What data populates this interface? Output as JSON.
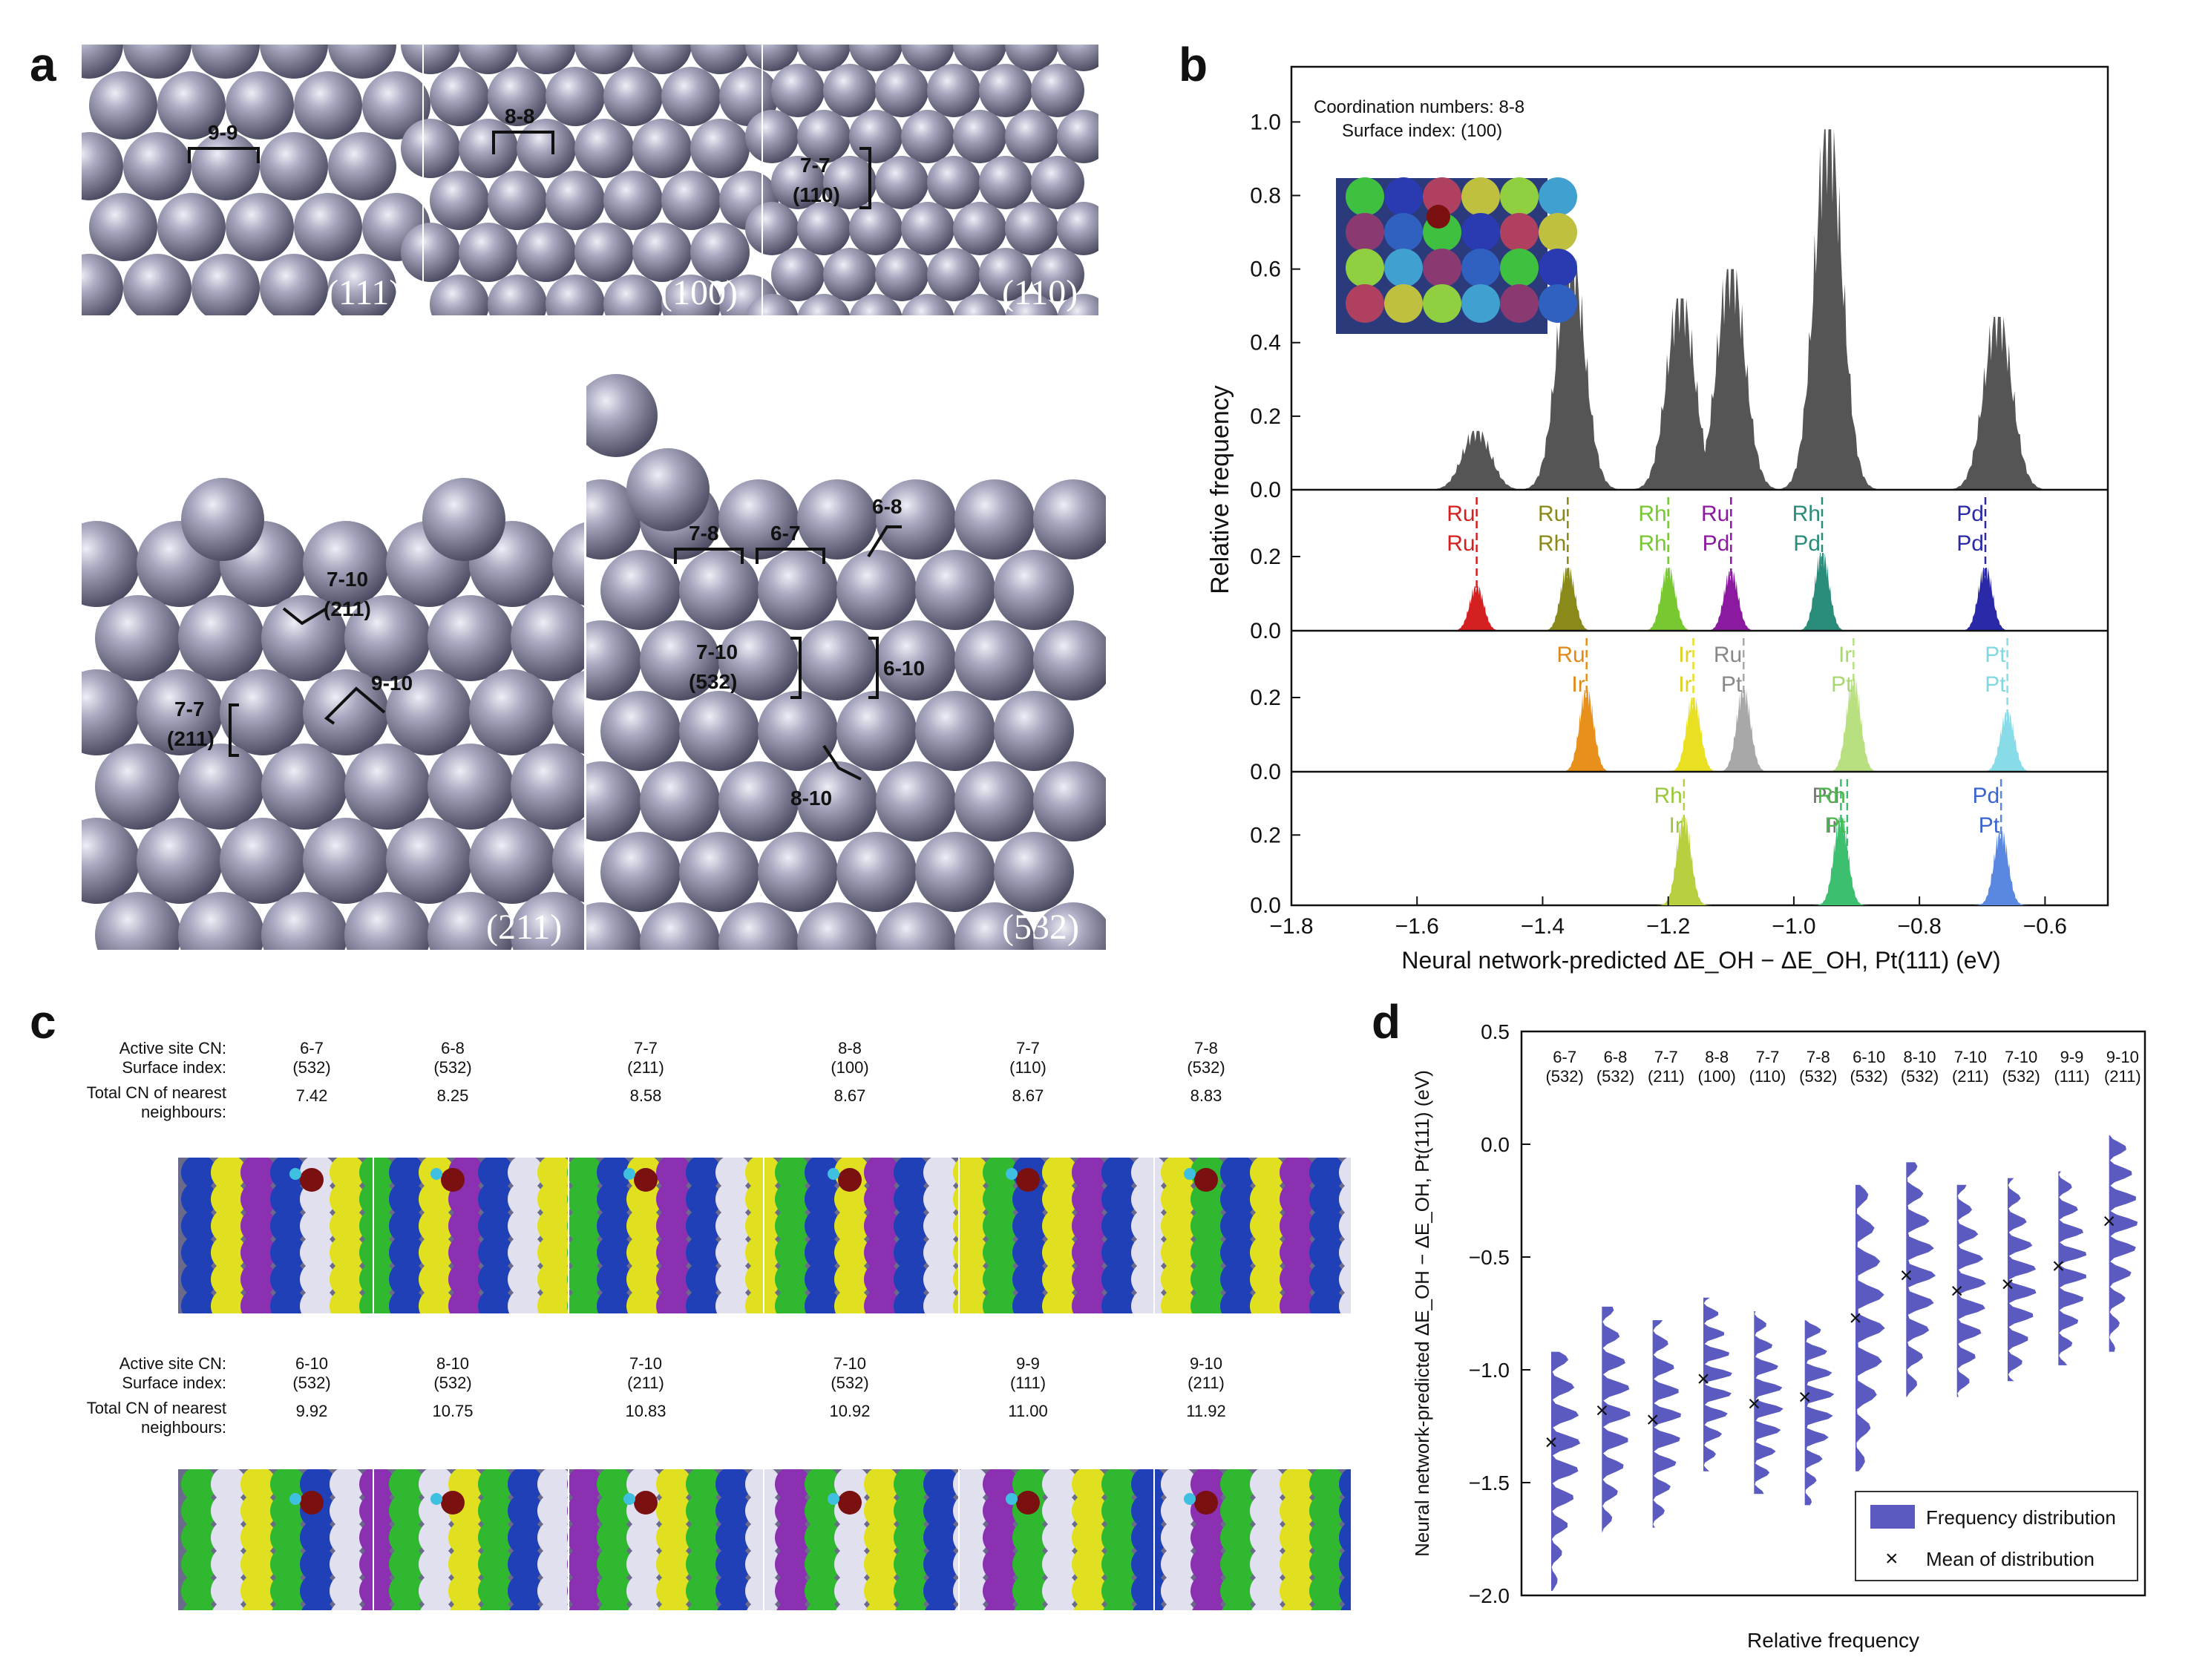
{
  "panels": {
    "a": "a",
    "b": "b",
    "c": "c",
    "d": "d"
  },
  "panel_a": {
    "top_facets": [
      "(111)",
      "(100)",
      "(110)"
    ],
    "bottom_facets": [
      "(211)",
      "(532)"
    ],
    "annotations": [
      {
        "id": "a-9-9",
        "text": "9-9"
      },
      {
        "id": "a-8-8",
        "text": "8-8"
      },
      {
        "id": "a-7-7-110",
        "text": "7-7",
        "sub": "(110)"
      },
      {
        "id": "a-7-10-211",
        "text": "7-10",
        "sub": "(211)"
      },
      {
        "id": "a-7-7-211",
        "text": "7-7",
        "sub": "(211)"
      },
      {
        "id": "a-9-10",
        "text": "9-10"
      },
      {
        "id": "a-7-8",
        "text": "7-8"
      },
      {
        "id": "a-6-7",
        "text": "6-7"
      },
      {
        "id": "a-6-8",
        "text": "6-8"
      },
      {
        "id": "a-7-10-532",
        "text": "7-10",
        "sub": "(532)"
      },
      {
        "id": "a-6-10",
        "text": "6-10"
      },
      {
        "id": "a-8-10",
        "text": "8-10"
      }
    ],
    "sphere_color": "#9a9ab2"
  },
  "chart_data": [
    {
      "panel": "b",
      "type": "area",
      "inset_text": [
        "Coordination numbers: 8-8",
        "Surface index: (100)"
      ],
      "xlabel": "Neural network-predicted ΔE_OH − ΔE_OH, Pt(111) (eV)",
      "ylabel": "Relative frequency",
      "xlim": [
        -1.8,
        -0.5
      ],
      "xticks": [
        "−1.8",
        "−1.6",
        "−1.4",
        "−1.2",
        "−1.0",
        "−0.8",
        "−0.6"
      ],
      "xtick_values": [
        -1.8,
        -1.6,
        -1.4,
        -1.2,
        -1.0,
        -0.8,
        -0.6
      ],
      "subplots": [
        {
          "yticks": [
            "0.0",
            "0.2",
            "0.4",
            "0.6",
            "0.8",
            "1.0"
          ],
          "ylim": [
            0,
            1.15
          ],
          "series": [
            {
              "color": "#555555",
              "peaks": [
                {
                  "center": -1.505,
                  "height": 0.16
                },
                {
                  "center": -1.355,
                  "height": 0.63
                },
                {
                  "center": -1.18,
                  "height": 0.52
                },
                {
                  "center": -1.1,
                  "height": 0.6
                },
                {
                  "center": -0.945,
                  "height": 0.98
                },
                {
                  "center": -0.675,
                  "height": 0.47
                }
              ]
            }
          ]
        },
        {
          "yticks": [
            "0.0",
            "0.2"
          ],
          "ylim": [
            0,
            0.38
          ],
          "series": [
            {
              "name_top": "Ru",
              "name_bottom": "Ru",
              "top_color": "#d42020",
              "bottom_color": "#d42020",
              "color": "#d42020",
              "center": -1.505,
              "height": 0.12
            },
            {
              "name_top": "Ru",
              "name_bottom": "Rh",
              "top_color": "#8a8a1a",
              "bottom_color": "#8a8a1a",
              "color": "#8a8a1a",
              "center": -1.36,
              "height": 0.17
            },
            {
              "name_top": "Rh",
              "name_bottom": "Rh",
              "top_color": "#78c832",
              "bottom_color": "#78c832",
              "color": "#78c832",
              "center": -1.2,
              "height": 0.17
            },
            {
              "name_top": "Ru",
              "name_bottom": "Pd",
              "top_color": "#8c1aa0",
              "bottom_color": "#8c1aa0",
              "color": "#8c1aa0",
              "center": -1.1,
              "height": 0.16
            },
            {
              "name_top": "Rh",
              "name_bottom": "Pd",
              "top_color": "#2a8c7a",
              "bottom_color": "#2a8c7a",
              "color": "#2a8c7a",
              "center": -0.955,
              "height": 0.21
            },
            {
              "name_top": "Pd",
              "name_bottom": "Pd",
              "top_color": "#2a2aa8",
              "bottom_color": "#2a2aa8",
              "color": "#2a2aa8",
              "center": -0.695,
              "height": 0.17
            }
          ]
        },
        {
          "yticks": [
            "0.0",
            "0.2"
          ],
          "ylim": [
            0,
            0.38
          ],
          "series": [
            {
              "name_top": "Ru",
              "name_bottom": "Ir",
              "top_color": "#e08a1a",
              "bottom_color": "#e08a1a",
              "color": "#e8901c",
              "center": -1.33,
              "height": 0.22
            },
            {
              "name_top": "Ir",
              "name_bottom": "Ir",
              "top_color": "#e0d020",
              "bottom_color": "#e0d020",
              "color": "#e8e020",
              "center": -1.16,
              "height": 0.2
            },
            {
              "name_top": "Ru",
              "name_bottom": "Pt",
              "top_color": "#888888",
              "bottom_color": "#888888",
              "color": "#a8a8a8",
              "center": -1.08,
              "height": 0.22
            },
            {
              "name_top": "Ir",
              "name_bottom": "Pt",
              "top_color": "#a8d870",
              "bottom_color": "#a8d870",
              "color": "#b8e080",
              "center": -0.905,
              "height": 0.25
            },
            {
              "name_top": "Pt",
              "name_bottom": "Pt",
              "top_color": "#80d8e0",
              "bottom_color": "#80d8e0",
              "color": "#88dce8",
              "center": -0.66,
              "height": 0.16
            }
          ]
        },
        {
          "yticks": [
            "0.0",
            "0.2"
          ],
          "ylim": [
            0,
            0.38
          ],
          "series": [
            {
              "name_top": "Rh",
              "name_bottom": "Ir",
              "top_color": "#9ac83a",
              "bottom_color": "#9ac83a",
              "color": "#b8d040",
              "center": -1.175,
              "height": 0.25
            },
            {
              "name_top": "Pd",
              "name_bottom": "Ir",
              "top_color": "#777777",
              "bottom_color": "#777777",
              "color": "#3cc070",
              "center": -0.925,
              "height": 0.25
            },
            {
              "name_top": "Rh",
              "name_bottom": "Pt",
              "top_color": "#4cb84c",
              "bottom_color": "#4cb84c",
              "color": "#3cc070",
              "center": -0.915,
              "height": 0.0
            },
            {
              "name_top": "Pd",
              "name_bottom": "Pt",
              "top_color": "#3a64d0",
              "bottom_color": "#3a64d0",
              "color": "#5a88e0",
              "center": -0.67,
              "height": 0.21
            }
          ]
        }
      ]
    },
    {
      "panel": "d",
      "type": "scatter",
      "ylabel": "Neural network-predicted ΔE_OH − ΔE_OH, Pt(111) (eV)",
      "xlabel": "Relative frequency",
      "ylim": [
        -2.0,
        0.5
      ],
      "yticks": [
        "0.5",
        "0.0",
        "−0.5",
        "−1.0",
        "−1.5",
        "−2.0"
      ],
      "ytick_values": [
        0.5,
        0.0,
        -0.5,
        -1.0,
        -1.5,
        -2.0
      ],
      "categories": [
        {
          "cn": "6-7",
          "surface": "(532)",
          "mean": -1.32,
          "min": -1.98,
          "max": -0.92
        },
        {
          "cn": "6-8",
          "surface": "(532)",
          "mean": -1.18,
          "min": -1.72,
          "max": -0.72
        },
        {
          "cn": "7-7",
          "surface": "(211)",
          "mean": -1.22,
          "min": -1.7,
          "max": -0.78
        },
        {
          "cn": "8-8",
          "surface": "(100)",
          "mean": -1.04,
          "min": -1.45,
          "max": -0.68
        },
        {
          "cn": "7-7",
          "surface": "(110)",
          "mean": -1.15,
          "min": -1.55,
          "max": -0.74
        },
        {
          "cn": "7-8",
          "surface": "(532)",
          "mean": -1.12,
          "min": -1.6,
          "max": -0.78
        },
        {
          "cn": "6-10",
          "surface": "(532)",
          "mean": -0.77,
          "min": -1.45,
          "max": -0.18
        },
        {
          "cn": "8-10",
          "surface": "(532)",
          "mean": -0.58,
          "min": -1.12,
          "max": -0.08
        },
        {
          "cn": "7-10",
          "surface": "(211)",
          "mean": -0.65,
          "min": -1.12,
          "max": -0.18
        },
        {
          "cn": "7-10",
          "surface": "(532)",
          "mean": -0.62,
          "min": -1.05,
          "max": -0.15
        },
        {
          "cn": "9-9",
          "surface": "(111)",
          "mean": -0.54,
          "min": -0.98,
          "max": -0.12
        },
        {
          "cn": "9-10",
          "surface": "(211)",
          "mean": -0.34,
          "min": -0.92,
          "max": 0.04
        }
      ],
      "series_color": "#5a5ac0",
      "legend": [
        "Frequency distribution",
        "Mean of distribution"
      ],
      "legend_placement": "bottom-right"
    }
  ],
  "panel_c": {
    "row_labels": {
      "cn": "Active site CN:",
      "surface": "Surface index:",
      "total_line1": "Total CN of nearest",
      "total_line2": "neighbours:"
    },
    "rows": [
      [
        {
          "cn": "6-7",
          "surface": "(532)",
          "total": "7.42"
        },
        {
          "cn": "6-8",
          "surface": "(532)",
          "total": "8.25"
        },
        {
          "cn": "7-7",
          "surface": "(211)",
          "total": "8.58"
        },
        {
          "cn": "8-8",
          "surface": "(100)",
          "total": "8.67"
        },
        {
          "cn": "7-7",
          "surface": "(110)",
          "total": "8.67"
        },
        {
          "cn": "7-8",
          "surface": "(532)",
          "total": "8.83"
        }
      ],
      [
        {
          "cn": "6-10",
          "surface": "(532)",
          "total": "9.92"
        },
        {
          "cn": "8-10",
          "surface": "(532)",
          "total": "10.75"
        },
        {
          "cn": "7-10",
          "surface": "(211)",
          "total": "10.83"
        },
        {
          "cn": "7-10",
          "surface": "(532)",
          "total": "10.92"
        },
        {
          "cn": "9-9",
          "surface": "(111)",
          "total": "11.00"
        },
        {
          "cn": "9-10",
          "surface": "(211)",
          "total": "11.92"
        }
      ]
    ],
    "atom_colors": [
      "#2040b8",
      "#30b830",
      "#8a30b0",
      "#e0e020",
      "#e0e0ee",
      "#7a1010",
      "#40c0e0"
    ]
  }
}
